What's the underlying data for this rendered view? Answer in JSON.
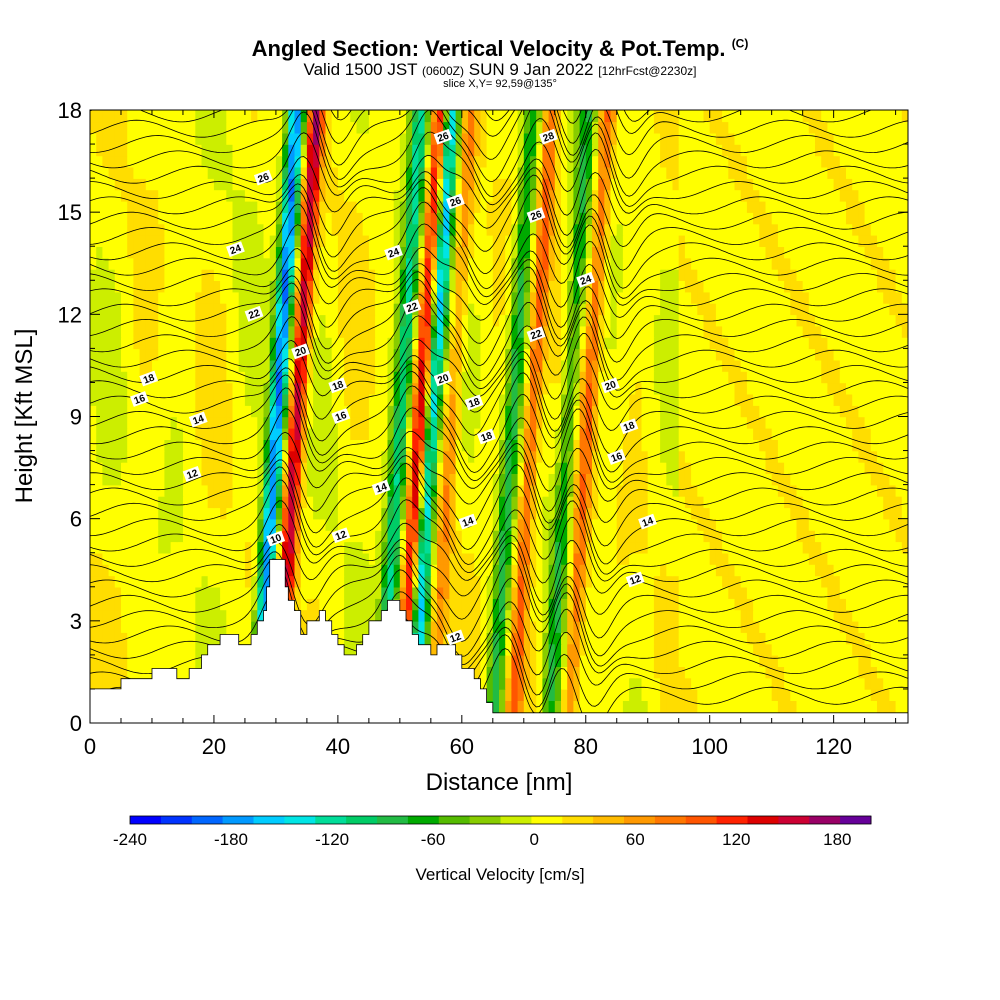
{
  "header": {
    "title": "Angled Section: Vertical Velocity & Pot.Temp.",
    "copyright": "(C)",
    "valid_prefix": "Valid 1500 JST",
    "valid_utc": "(0600Z)",
    "valid_date": "SUN 9 Jan 2022",
    "forecast": "[12hrFcst@2230z]",
    "slice": "slice X,Y= 92,59@135°"
  },
  "chart_data": {
    "type": "heatmap",
    "title": "Angled Section: Vertical Velocity & Pot.Temp.",
    "xlabel": "Distance [nm]",
    "ylabel": "Height [Kft MSL]",
    "xlim": [
      0,
      132
    ],
    "ylim": [
      0,
      18
    ],
    "x_ticks": [
      0,
      20,
      40,
      60,
      80,
      100,
      120
    ],
    "y_ticks": [
      0,
      3,
      6,
      9,
      12,
      15,
      18
    ],
    "colorbar": {
      "label": "Vertical Velocity [cm/s]",
      "ticks": [
        -240,
        -180,
        -120,
        -60,
        0,
        60,
        120,
        180
      ],
      "range": [
        -240,
        200
      ],
      "colors": [
        "#0000ff",
        "#0033ff",
        "#0066ff",
        "#0099ff",
        "#00ccff",
        "#00e5e5",
        "#00dd99",
        "#00cc66",
        "#22bb44",
        "#00aa00",
        "#55bb00",
        "#88cc00",
        "#ccee00",
        "#ffff00",
        "#ffdd00",
        "#ffbb00",
        "#ff9900",
        "#ff7700",
        "#ff5500",
        "#ff2200",
        "#dd0000",
        "#cc0033",
        "#990066",
        "#660099"
      ]
    },
    "terrain_kft": [
      [
        0,
        1.0
      ],
      [
        5,
        1.0
      ],
      [
        5,
        1.3
      ],
      [
        10,
        1.3
      ],
      [
        10,
        1.6
      ],
      [
        14,
        1.6
      ],
      [
        14,
        1.3
      ],
      [
        16,
        1.3
      ],
      [
        16,
        1.6
      ],
      [
        18,
        1.6
      ],
      [
        18,
        2.0
      ],
      [
        19,
        2.0
      ],
      [
        19,
        2.3
      ],
      [
        21,
        2.3
      ],
      [
        21,
        2.6
      ],
      [
        24,
        2.6
      ],
      [
        24,
        2.3
      ],
      [
        26,
        2.3
      ],
      [
        26,
        2.6
      ],
      [
        27,
        2.6
      ],
      [
        27,
        3.0
      ],
      [
        28,
        3.0
      ],
      [
        28,
        3.3
      ],
      [
        28.5,
        3.3
      ],
      [
        28.5,
        4.0
      ],
      [
        29,
        4.0
      ],
      [
        29,
        4.8
      ],
      [
        31.5,
        4.8
      ],
      [
        31.5,
        4.0
      ],
      [
        32,
        4.0
      ],
      [
        32,
        3.6
      ],
      [
        33,
        3.6
      ],
      [
        33,
        3.3
      ],
      [
        34,
        3.3
      ],
      [
        34,
        2.6
      ],
      [
        35,
        2.6
      ],
      [
        35,
        3.0
      ],
      [
        37,
        3.0
      ],
      [
        37,
        3.3
      ],
      [
        38,
        3.3
      ],
      [
        38,
        3.0
      ],
      [
        39,
        3.0
      ],
      [
        39,
        2.6
      ],
      [
        40,
        2.6
      ],
      [
        40,
        2.3
      ],
      [
        41,
        2.3
      ],
      [
        41,
        2.0
      ],
      [
        43,
        2.0
      ],
      [
        43,
        2.3
      ],
      [
        44,
        2.3
      ],
      [
        44,
        2.6
      ],
      [
        45,
        2.6
      ],
      [
        45,
        3.0
      ],
      [
        47,
        3.0
      ],
      [
        47,
        3.3
      ],
      [
        48,
        3.3
      ],
      [
        48,
        3.6
      ],
      [
        50,
        3.6
      ],
      [
        50,
        3.3
      ],
      [
        51,
        3.3
      ],
      [
        51,
        3.0
      ],
      [
        52,
        3.0
      ],
      [
        52,
        2.6
      ],
      [
        53,
        2.6
      ],
      [
        53,
        2.3
      ],
      [
        55,
        2.3
      ],
      [
        55,
        2.0
      ],
      [
        56,
        2.0
      ],
      [
        56,
        2.3
      ],
      [
        59,
        2.3
      ],
      [
        59,
        2.0
      ],
      [
        60,
        2.0
      ],
      [
        60,
        1.6
      ],
      [
        62,
        1.6
      ],
      [
        62,
        1.3
      ],
      [
        63,
        1.3
      ],
      [
        63,
        1.0
      ],
      [
        64,
        1.0
      ],
      [
        64,
        0.6
      ],
      [
        65,
        0.6
      ],
      [
        65,
        0.3
      ],
      [
        132,
        0.3
      ],
      [
        132,
        0
      ]
    ],
    "updraft_bands": [
      {
        "x": 32,
        "min_v": -200,
        "max_v": 150
      },
      {
        "x": 52,
        "min_v": -120,
        "max_v": 140
      },
      {
        "x": 57,
        "min_v": -170,
        "max_v": 60
      },
      {
        "x": 70,
        "min_v": -90,
        "max_v": 90
      },
      {
        "x": 79,
        "min_v": -80,
        "max_v": 80
      }
    ],
    "contour_labels": [
      {
        "x": 28,
        "y": 16.0,
        "text": "26"
      },
      {
        "x": 23.5,
        "y": 13.9,
        "text": "24"
      },
      {
        "x": 26.5,
        "y": 12.0,
        "text": "22"
      },
      {
        "x": 9.5,
        "y": 10.1,
        "text": "18"
      },
      {
        "x": 8,
        "y": 9.5,
        "text": "16"
      },
      {
        "x": 17.5,
        "y": 8.9,
        "text": "14"
      },
      {
        "x": 16.5,
        "y": 7.3,
        "text": "12"
      },
      {
        "x": 34,
        "y": 10.9,
        "text": "20"
      },
      {
        "x": 30,
        "y": 5.4,
        "text": "10"
      },
      {
        "x": 40,
        "y": 9.9,
        "text": "18"
      },
      {
        "x": 40.5,
        "y": 9.0,
        "text": "16"
      },
      {
        "x": 40.5,
        "y": 5.5,
        "text": "12"
      },
      {
        "x": 47,
        "y": 6.9,
        "text": "14"
      },
      {
        "x": 49,
        "y": 13.8,
        "text": "24"
      },
      {
        "x": 52,
        "y": 12.2,
        "text": "22"
      },
      {
        "x": 57,
        "y": 17.2,
        "text": "26"
      },
      {
        "x": 59,
        "y": 15.3,
        "text": "26"
      },
      {
        "x": 57,
        "y": 10.1,
        "text": "20"
      },
      {
        "x": 62,
        "y": 9.4,
        "text": "18"
      },
      {
        "x": 64,
        "y": 8.4,
        "text": "18"
      },
      {
        "x": 61,
        "y": 5.9,
        "text": "14"
      },
      {
        "x": 59,
        "y": 2.5,
        "text": "12"
      },
      {
        "x": 74,
        "y": 17.2,
        "text": "28"
      },
      {
        "x": 72,
        "y": 14.9,
        "text": "26"
      },
      {
        "x": 80,
        "y": 13.0,
        "text": "24"
      },
      {
        "x": 72,
        "y": 11.4,
        "text": "22"
      },
      {
        "x": 84,
        "y": 9.9,
        "text": "20"
      },
      {
        "x": 87,
        "y": 8.7,
        "text": "18"
      },
      {
        "x": 85,
        "y": 7.8,
        "text": "16"
      },
      {
        "x": 90,
        "y": 5.9,
        "text": "14"
      },
      {
        "x": 88,
        "y": 4.2,
        "text": "12"
      }
    ]
  }
}
